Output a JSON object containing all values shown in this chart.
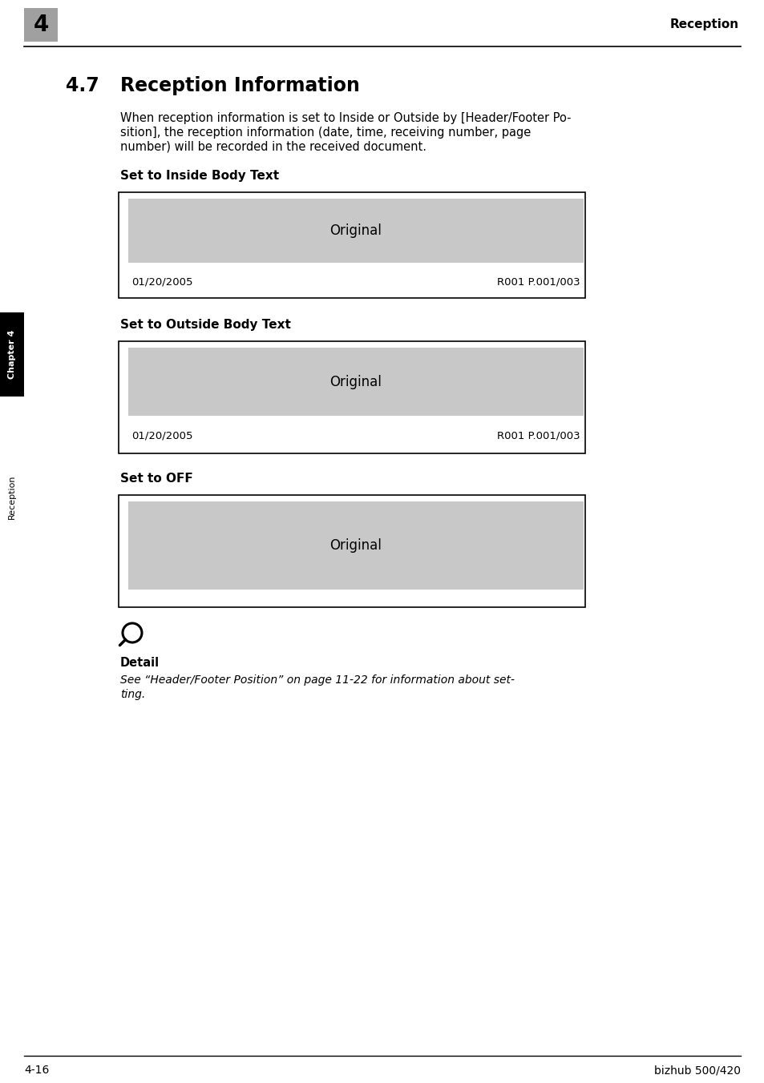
{
  "page_bg": "#ffffff",
  "header_number": "4",
  "header_number_bg": "#a0a0a0",
  "header_right_text": "Reception",
  "section_number": "4.7",
  "section_title": "Reception Information",
  "body_line1": "When reception information is set to Inside or Outside by [Header/Footer Po-",
  "body_line2": "sition], the reception information (date, time, receiving number, page",
  "body_line3": "number) will be recorded in the received document.",
  "subsection1_title": "Set to Inside Body Text",
  "subsection2_title": "Set to Outside Body Text",
  "subsection3_title": "Set to OFF",
  "box_bg": "#c8c8c8",
  "box_border": "#000000",
  "original_text": "Original",
  "date_text": "01/20/2005",
  "ref_text": "R001 P.001/003",
  "detail_title": "Detail",
  "detail_line1": "See “Header/Footer Position” on page 11-22 for information about set-",
  "detail_line2": "ting.",
  "footer_left": "4-16",
  "footer_right": "bizhub 500/420",
  "left_sidebar_chapter": "Chapter 4",
  "left_sidebar_reception": "Reception",
  "sidebar_chapter_bg": "#000000",
  "sidebar_chapter_color": "#ffffff",
  "sidebar_reception_color": "#000000"
}
